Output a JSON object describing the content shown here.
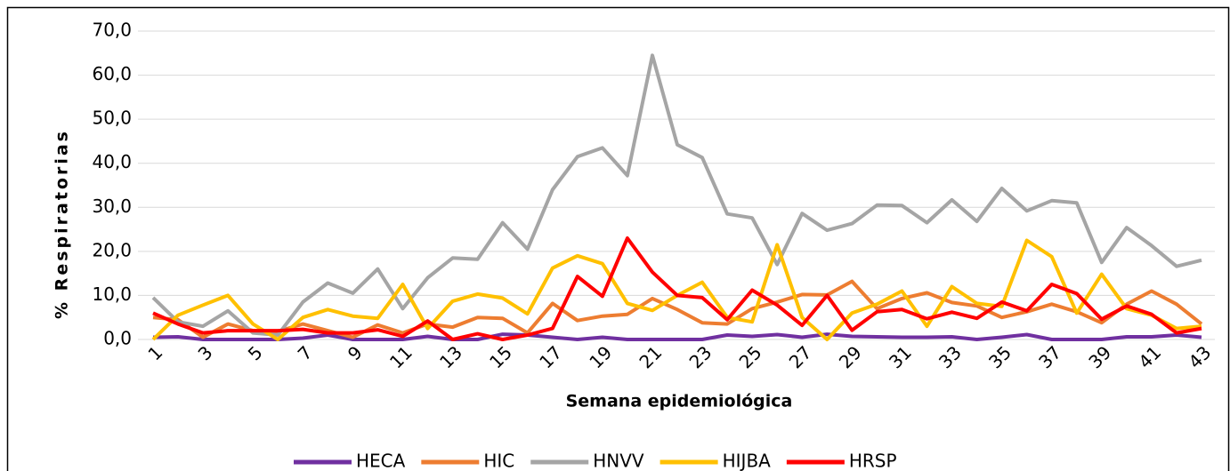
{
  "chart_data": {
    "type": "line",
    "x_label": "Semana epidemiológica",
    "y_label": "% Respiratorias",
    "categories": [
      "1",
      null,
      "3",
      null,
      "5",
      null,
      "7",
      null,
      "9",
      null,
      "11",
      null,
      "13",
      null,
      "15",
      null,
      "17",
      null,
      "19",
      null,
      "21",
      null,
      "23",
      null,
      "25",
      null,
      "27",
      null,
      "29",
      null,
      "31",
      null,
      "33",
      null,
      "35",
      null,
      "37",
      null,
      "39",
      null,
      "41",
      null,
      "43"
    ],
    "ylim": [
      0,
      70
    ],
    "yticks": [
      {
        "value": 0,
        "label": "0,0"
      },
      {
        "value": 10,
        "label": "10,0"
      },
      {
        "value": 20,
        "label": "20,0"
      },
      {
        "value": 30,
        "label": "30,0"
      },
      {
        "value": 40,
        "label": "40,0"
      },
      {
        "value": 50,
        "label": "50,0"
      },
      {
        "value": 60,
        "label": "60,0"
      },
      {
        "value": 70,
        "label": "70,0"
      }
    ],
    "grid": true,
    "legend": "bottom",
    "series": [
      {
        "name": "HECA",
        "color": "#7030a0",
        "values": [
          0.5,
          0.6,
          0,
          0,
          0,
          0,
          0.3,
          1,
          0,
          0,
          0,
          0.7,
          0,
          0,
          1.2,
          1,
          0.5,
          0,
          0.5,
          0,
          0,
          0,
          0,
          1,
          0.7,
          1.1,
          0.5,
          1.2,
          0.7,
          0.6,
          0.5,
          0.5,
          0.6,
          0,
          0.5,
          1.1,
          0,
          0,
          0,
          0.6,
          0.6,
          1,
          0.5
        ]
      },
      {
        "name": "HIC",
        "color": "#ed7d31",
        "values": [
          5,
          4.5,
          0.5,
          3.5,
          2,
          1.8,
          3.5,
          2,
          0.5,
          3.3,
          1.5,
          3.5,
          2.8,
          5,
          4.8,
          1.5,
          8.2,
          4.3,
          5.3,
          5.7,
          9.3,
          6.8,
          3.8,
          3.5,
          7,
          8.5,
          10.2,
          10.1,
          13.2,
          7,
          9.3,
          10.6,
          8.4,
          7.6,
          5,
          6.3,
          8,
          6.3,
          3.8,
          8,
          11,
          8,
          3.5
        ]
      },
      {
        "name": "HNVV",
        "color": "#a5a5a5",
        "values": [
          9.5,
          4,
          3,
          6.5,
          1.5,
          1,
          8.5,
          12.8,
          10.5,
          16,
          7,
          14,
          18.5,
          18.2,
          26.5,
          20.5,
          34,
          41.5,
          43.5,
          37.2,
          64.5,
          44.2,
          41.3,
          28.5,
          27.6,
          17,
          28.6,
          24.8,
          26.3,
          30.5,
          30.4,
          26.5,
          31.7,
          26.8,
          34.3,
          29.2,
          31.5,
          31,
          17.5,
          25.4,
          21.3,
          16.6,
          18
        ]
      },
      {
        "name": "HIJBA",
        "color": "#ffc000",
        "values": [
          0,
          5.5,
          7.8,
          10,
          3.5,
          0,
          5,
          6.8,
          5.3,
          4.8,
          12.5,
          2.5,
          8.7,
          10.3,
          9.4,
          5.8,
          16.2,
          19,
          17.2,
          8.2,
          6.6,
          10,
          13,
          5,
          4,
          21.5,
          5,
          0,
          6,
          8,
          11,
          3,
          12,
          8.2,
          7.5,
          22.5,
          18.8,
          6,
          14.8,
          7,
          5.5,
          2.5,
          3
        ]
      },
      {
        "name": "HRSP",
        "color": "#ff0000",
        "values": [
          6,
          3.5,
          1.5,
          2,
          2,
          2,
          2.3,
          1.5,
          1.5,
          2.2,
          0.7,
          4.2,
          0,
          1.3,
          0,
          1,
          2.5,
          14.3,
          9.8,
          23,
          15.3,
          10,
          9.5,
          4.5,
          11.2,
          7.8,
          3.2,
          10,
          2.1,
          6.3,
          6.8,
          4.7,
          6.2,
          4.8,
          8.5,
          6.5,
          12.5,
          10.4,
          4.6,
          7.6,
          5.7,
          1.5,
          2.5
        ]
      }
    ]
  }
}
